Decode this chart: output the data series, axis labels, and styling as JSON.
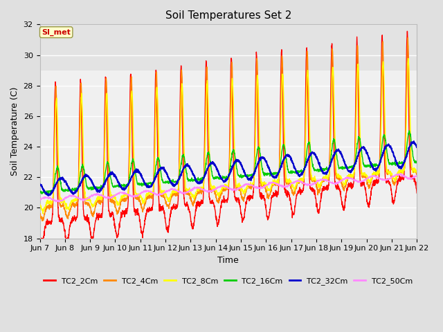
{
  "title": "Soil Temperatures Set 2",
  "xlabel": "Time",
  "ylabel": "Soil Temperature (C)",
  "ylim": [
    18,
    32
  ],
  "yticks": [
    18,
    20,
    22,
    24,
    26,
    28,
    30,
    32
  ],
  "xtick_labels": [
    "Jun 7",
    "Jun 8",
    "Jun 9",
    "Jun 10",
    "Jun 11",
    "Jun 12",
    "Jun 13",
    "Jun 14",
    "Jun 15",
    "Jun 16",
    "Jun 17",
    "Jun 18",
    "Jun 19",
    "Jun 20",
    "Jun 21",
    "Jun 22"
  ],
  "legend_labels": [
    "TC2_2Cm",
    "TC2_4Cm",
    "TC2_8Cm",
    "TC2_16Cm",
    "TC2_32Cm",
    "TC2_50Cm"
  ],
  "line_colors": [
    "#ff0000",
    "#ff8800",
    "#ffff00",
    "#00cc00",
    "#0000cc",
    "#ff88ff"
  ],
  "line_widths": [
    1.0,
    1.0,
    1.0,
    1.0,
    1.5,
    1.0
  ],
  "annotation_text": "SI_met",
  "annotation_color": "#cc0000",
  "annotation_bg": "#ffffcc",
  "background_color": "#e0e0e0",
  "plot_bg": "#f0f0f0",
  "grid_color": "#ffffff",
  "title_fontsize": 11,
  "axis_fontsize": 9,
  "tick_fontsize": 8,
  "n_points": 2160,
  "days": 15
}
